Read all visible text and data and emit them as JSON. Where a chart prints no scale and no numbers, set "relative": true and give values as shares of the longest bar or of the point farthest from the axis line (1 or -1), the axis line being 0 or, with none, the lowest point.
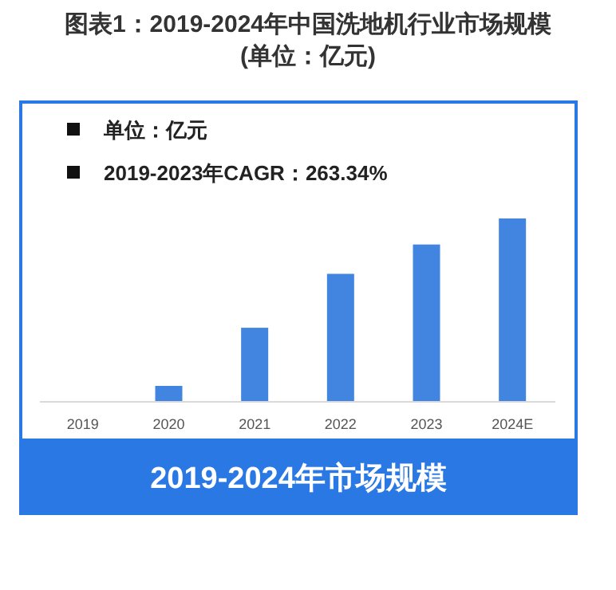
{
  "chart_data": {
    "type": "bar",
    "title": "图表1：2019-2024年中国洗地机行业市场规模",
    "subtitle": "(单位：亿元)",
    "relative": true,
    "categories": [
      "2019",
      "2020",
      "2021",
      "2022",
      "2023",
      "2024E"
    ],
    "values": [
      0,
      0.087,
      0.404,
      0.698,
      0.858,
      1
    ],
    "color": "#4285e0",
    "annotations": [
      "单位：亿元",
      "2019-2023年CAGR：263.34%",
      "2019-2024年市场规模"
    ]
  }
}
